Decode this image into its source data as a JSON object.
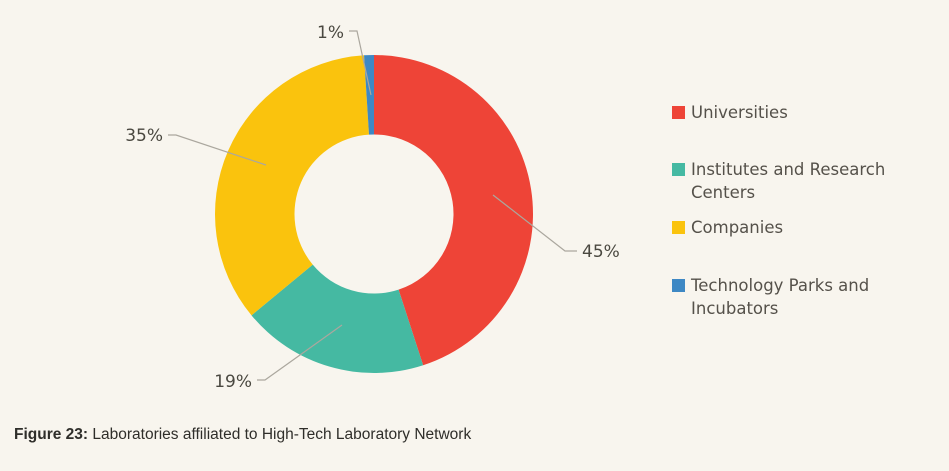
{
  "figure": {
    "caption_prefix": "Figure 23:",
    "caption_text": " Laboratories affiliated to High-Tech Laboratory Network"
  },
  "colors": {
    "background": "#F8F5EE",
    "leader_line": "#ABA79E",
    "pct_label_text": "#4A4840",
    "legend_text": "#55514A",
    "caption_text": "#2F2E2A"
  },
  "chart_data": {
    "type": "pie",
    "subtype": "donut",
    "title": "",
    "unit": "%",
    "direction": "clockwise",
    "start_angle_deg": 0,
    "legend_position": "right",
    "categories": [
      "Universities",
      "Institutes and Research Centers",
      "Companies",
      "Technology Parks and Incubators"
    ],
    "values": [
      45,
      19,
      35,
      1
    ],
    "slices": [
      {
        "label": "Universities",
        "value": 45,
        "pct_label": "45%",
        "color": "#EE4437"
      },
      {
        "label": "Institutes and Research Centers",
        "value": 19,
        "pct_label": "19%",
        "color": "#45B9A2"
      },
      {
        "label": "Companies",
        "value": 35,
        "pct_label": "35%",
        "color": "#FAC30D"
      },
      {
        "label": "Technology Parks and Incubators",
        "value": 1,
        "pct_label": "1%",
        "color": "#3E88C4"
      }
    ]
  }
}
